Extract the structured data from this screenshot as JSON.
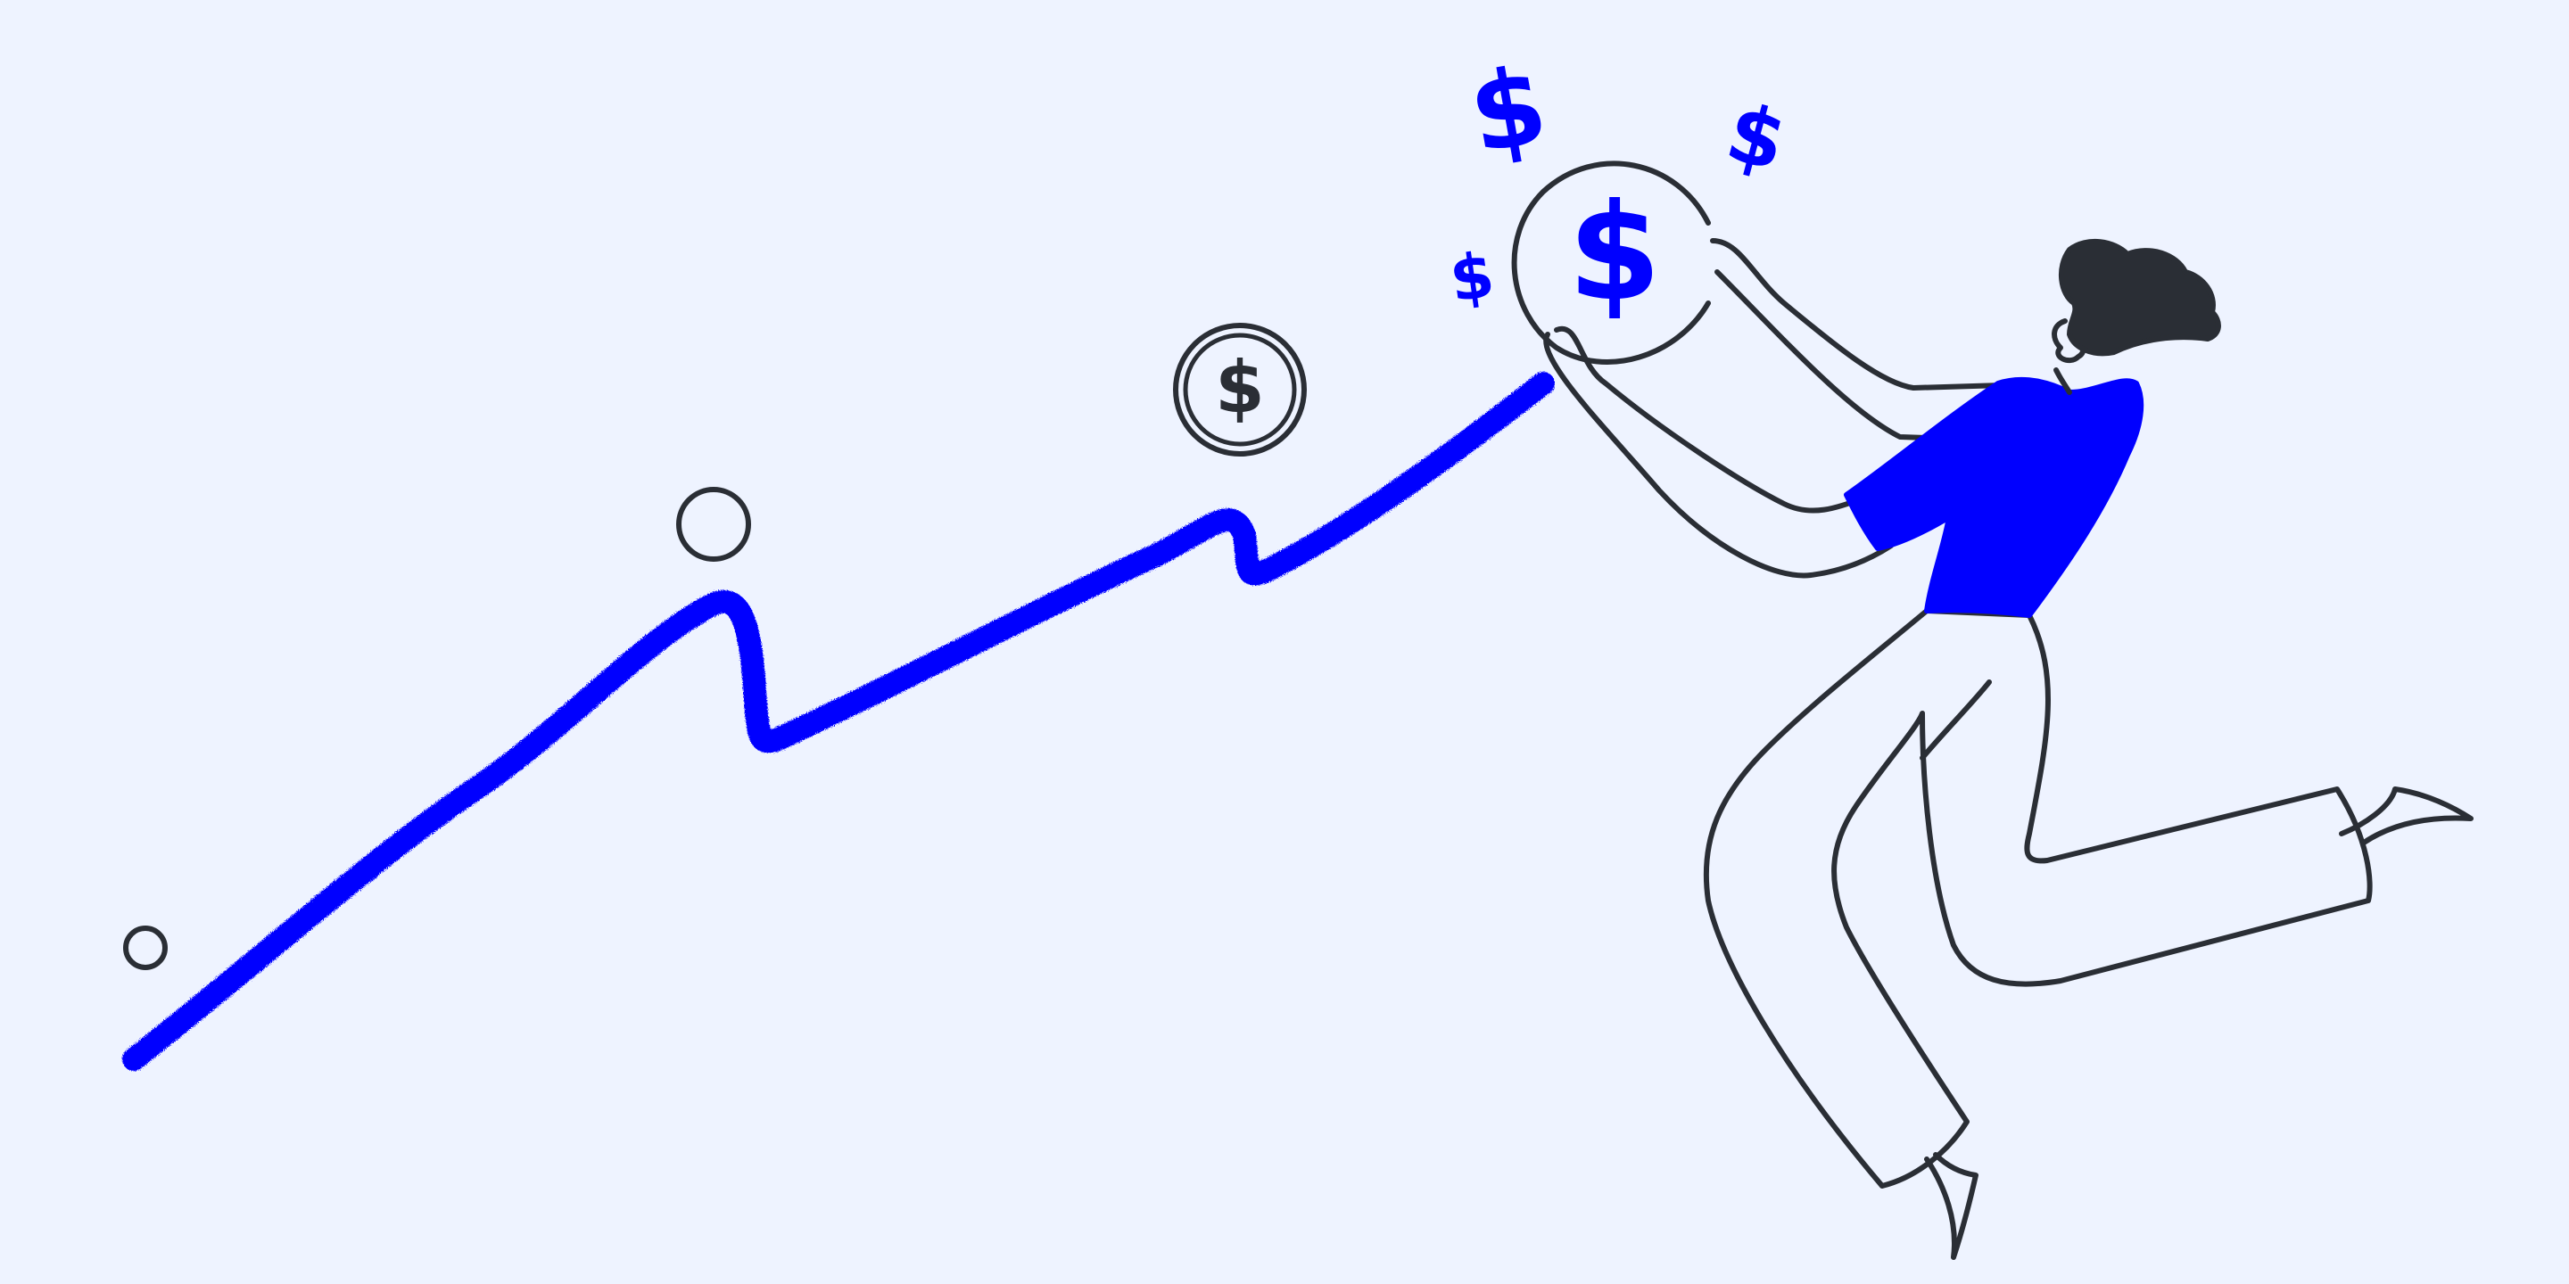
{
  "colors": {
    "background": "#eef3ff",
    "accent_blue": "#0000ff",
    "ink": "#2a2e35",
    "pants_fill": "#eef3ff",
    "skin_fill": "#eef3ff"
  },
  "icons": {
    "coin_symbol": "dollar-sign-icon",
    "floating_symbol": "dollar-sign-icon"
  },
  "illustration": {
    "coin_label": "$",
    "big_coin_label": "$",
    "floating_labels": [
      "$",
      "$",
      "$"
    ]
  }
}
